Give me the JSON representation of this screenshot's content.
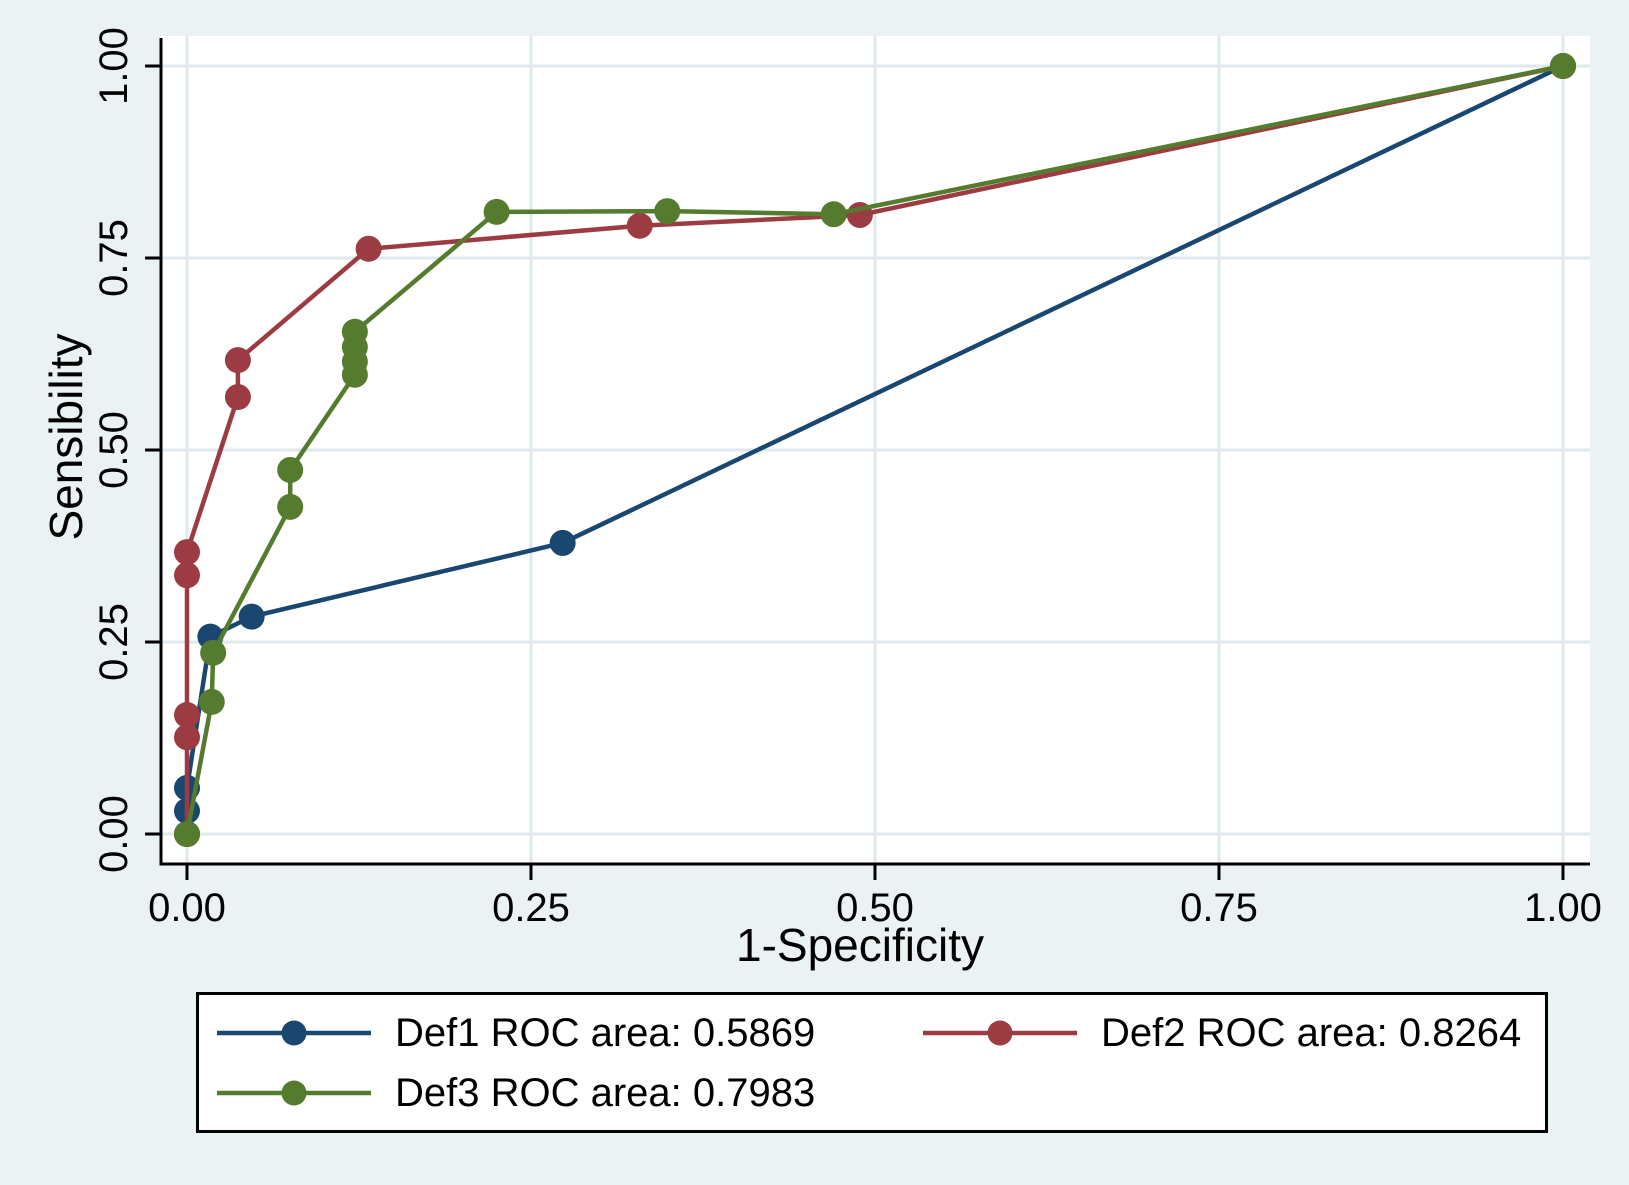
{
  "chart_data": {
    "type": "line",
    "title": "",
    "xlabel": "1-Specificity",
    "ylabel": "Sensibility",
    "xlim": [
      0,
      1
    ],
    "ylim": [
      0,
      1
    ],
    "grid": true,
    "legend_position": "bottom",
    "xticks": {
      "values": [
        0,
        0.25,
        0.5,
        0.75,
        1
      ],
      "labels": [
        "0.00",
        "0.25",
        "0.50",
        "0.75",
        "1.00"
      ]
    },
    "yticks": {
      "values": [
        0,
        0.25,
        0.5,
        0.75,
        1
      ],
      "labels": [
        "0.00",
        "0.25",
        "0.50",
        "0.75",
        "1.00"
      ]
    },
    "series": [
      {
        "name": "Def1 ROC area: 0.5869",
        "color": "#1a476f",
        "points": [
          [
            0,
            0
          ],
          [
            0,
            0.03
          ],
          [
            0,
            0.06
          ],
          [
            0.017,
            0.257
          ],
          [
            0.047,
            0.283
          ],
          [
            0.273,
            0.379
          ],
          [
            1,
            1
          ]
        ]
      },
      {
        "name": "Def2 ROC area: 0.8264",
        "color": "#9d3b43",
        "points": [
          [
            0,
            0
          ],
          [
            0,
            0.126
          ],
          [
            0,
            0.155
          ],
          [
            0,
            0.337
          ],
          [
            0,
            0.367
          ],
          [
            0.037,
            0.569
          ],
          [
            0.037,
            0.617
          ],
          [
            0.132,
            0.762
          ],
          [
            0.329,
            0.792
          ],
          [
            0.489,
            0.806
          ],
          [
            1,
            1
          ]
        ]
      },
      {
        "name": "Def3 ROC area: 0.7983",
        "color": "#557b2e",
        "points": [
          [
            0,
            0
          ],
          [
            0.018,
            0.172
          ],
          [
            0.019,
            0.236
          ],
          [
            0.075,
            0.426
          ],
          [
            0.075,
            0.474
          ],
          [
            0.122,
            0.598
          ],
          [
            0.122,
            0.615
          ],
          [
            0.122,
            0.634
          ],
          [
            0.122,
            0.654
          ],
          [
            0.225,
            0.81
          ],
          [
            0.349,
            0.811
          ],
          [
            0.47,
            0.807
          ],
          [
            1,
            1
          ]
        ]
      }
    ]
  },
  "colors": {
    "background": "#eaf2f3",
    "plot_background": "#ffffff",
    "gridline": "#dde9ec",
    "axis": "#000000",
    "legend_border": "#000000",
    "series_blue": "#1a476f",
    "series_maroon": "#9d3b43",
    "series_green": "#557b2e"
  }
}
